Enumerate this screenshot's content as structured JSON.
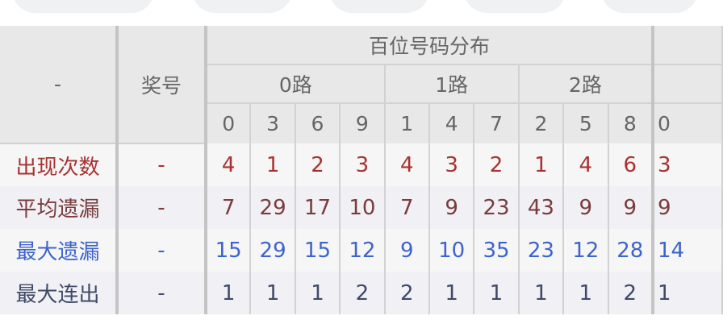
{
  "header": {
    "corner": "-",
    "prize_label": "奖号",
    "group_title": "百位号码分布",
    "routes": [
      {
        "label": "0路",
        "digits": [
          "0",
          "3",
          "6",
          "9"
        ]
      },
      {
        "label": "1路",
        "digits": [
          "1",
          "4",
          "7"
        ]
      },
      {
        "label": "2路",
        "digits": [
          "2",
          "5",
          "8"
        ]
      }
    ],
    "next_digit": "0"
  },
  "rows": [
    {
      "label": "出现次数",
      "prize": "-",
      "values": [
        "4",
        "1",
        "2",
        "3",
        "4",
        "3",
        "2",
        "1",
        "4",
        "6"
      ],
      "next": "3",
      "color": "#a83232"
    },
    {
      "label": "平均遗漏",
      "prize": "-",
      "values": [
        "7",
        "29",
        "17",
        "10",
        "7",
        "9",
        "23",
        "43",
        "9",
        "9"
      ],
      "next": "9",
      "color": "#7a3c3c"
    },
    {
      "label": "最大遗漏",
      "prize": "-",
      "values": [
        "15",
        "29",
        "15",
        "12",
        "9",
        "10",
        "35",
        "23",
        "12",
        "28"
      ],
      "next": "14",
      "color": "#3d64cc"
    },
    {
      "label": "最大连出",
      "prize": "-",
      "values": [
        "1",
        "1",
        "1",
        "2",
        "2",
        "1",
        "1",
        "1",
        "1",
        "2"
      ],
      "next": "1",
      "color": "#3e4a66"
    }
  ]
}
